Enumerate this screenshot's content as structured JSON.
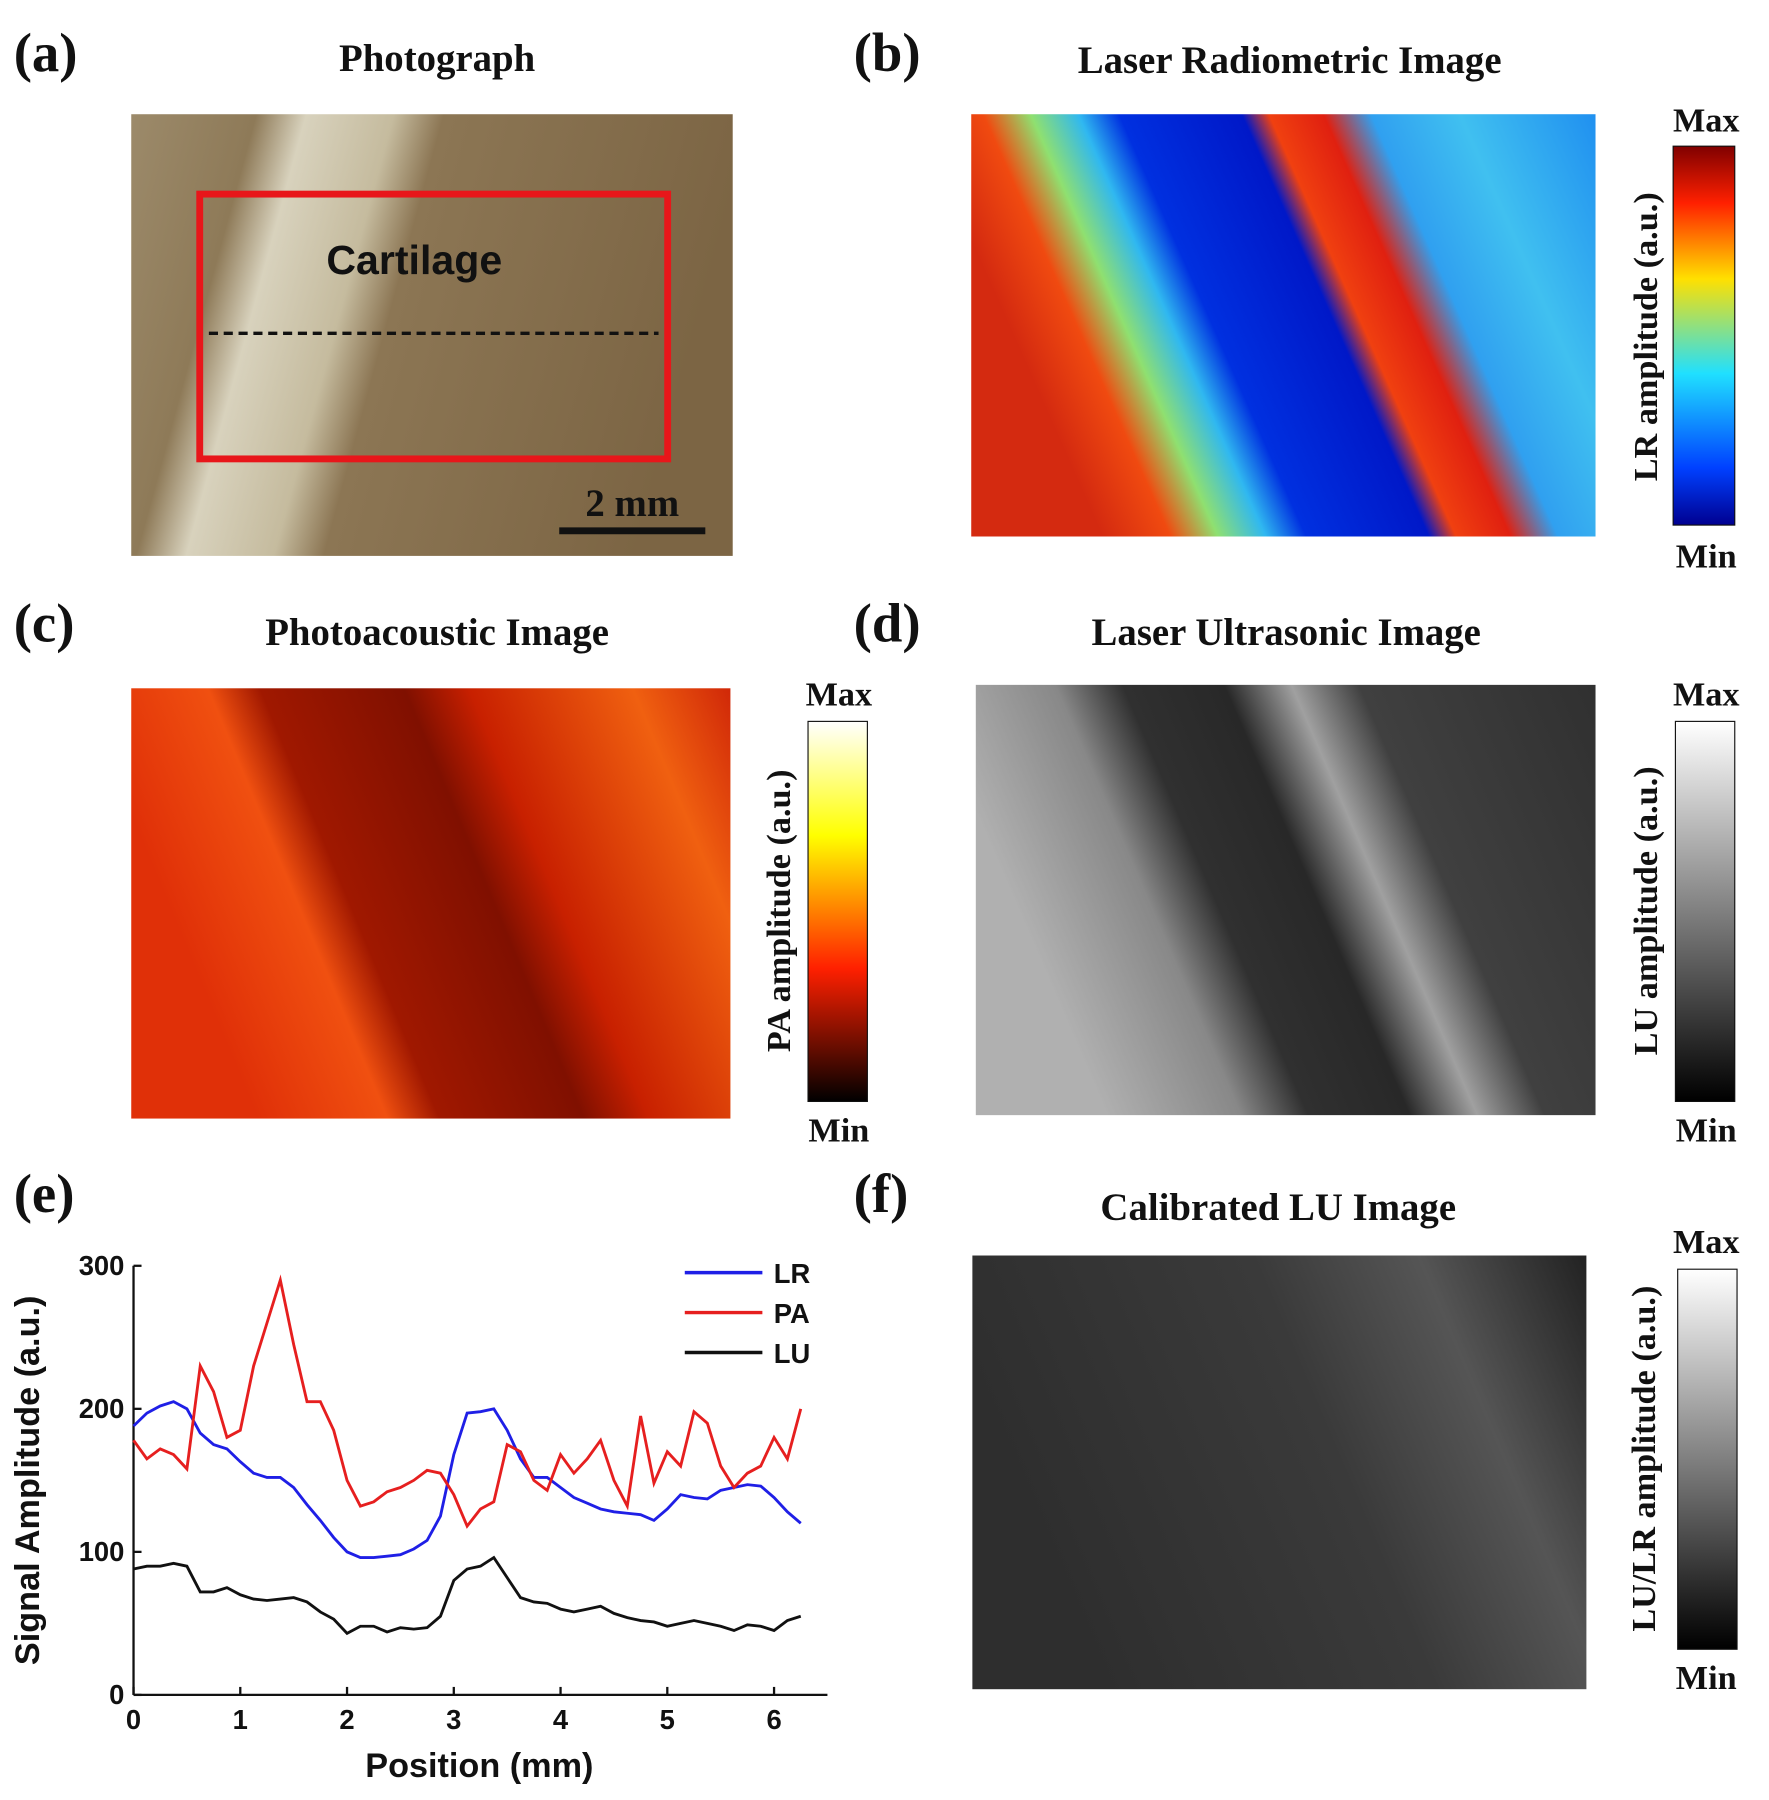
{
  "panels": [
    {
      "label": "(a)",
      "title": "Photograph",
      "annotations": [
        "Cartilage",
        "2 mm"
      ]
    },
    {
      "label": "(b)",
      "title": "Laser Radiometric Image",
      "colorbar": {
        "label": "LR amplitude (a.u.)",
        "max": "Max",
        "min": "Min"
      }
    },
    {
      "label": "(c)",
      "title": "Photoacoustic Image",
      "colorbar": {
        "label": "PA amplitude (a.u.)",
        "max": "Max",
        "min": "Min"
      }
    },
    {
      "label": "(d)",
      "title": "Laser Ultrasonic Image",
      "colorbar": {
        "label": "LU amplitude (a.u.)",
        "max": "Max",
        "min": "Min"
      }
    },
    {
      "label": "(f)",
      "title": "Calibrated LU Image",
      "colorbar": {
        "label": "LU/LR amplitude (a.u.)",
        "max": "Max",
        "min": "Min"
      }
    }
  ],
  "chart_data": {
    "type": "line",
    "label": "(e)",
    "xlabel": "Position (mm)",
    "ylabel": "Signal Amplitude (a.u.)",
    "xlim": [
      0,
      6.5
    ],
    "xticks": [
      0,
      1,
      2,
      3,
      4,
      5,
      6
    ],
    "ylim": [
      0,
      300
    ],
    "yticks": [
      0,
      100,
      200,
      300
    ],
    "x": [
      0,
      0.125,
      0.25,
      0.375,
      0.5,
      0.625,
      0.75,
      0.875,
      1,
      1.125,
      1.25,
      1.375,
      1.5,
      1.625,
      1.75,
      1.875,
      2,
      2.125,
      2.25,
      2.375,
      2.5,
      2.625,
      2.75,
      2.875,
      3,
      3.125,
      3.25,
      3.375,
      3.5,
      3.625,
      3.75,
      3.875,
      4,
      4.125,
      4.25,
      4.375,
      4.5,
      4.625,
      4.75,
      4.875,
      5,
      5.125,
      5.25,
      5.375,
      5.5,
      5.625,
      5.75,
      5.875,
      6,
      6.125,
      6.25
    ],
    "series": [
      {
        "name": "LR",
        "color": "#1f1fe6",
        "values": [
          188,
          197,
          202,
          205,
          200,
          183,
          175,
          172,
          163,
          155,
          152,
          152,
          145,
          133,
          122,
          110,
          100,
          96,
          96,
          97,
          98,
          102,
          108,
          125,
          168,
          197,
          198,
          200,
          185,
          165,
          152,
          152,
          145,
          138,
          134,
          130,
          128,
          127,
          126,
          122,
          130,
          140,
          138,
          137,
          143,
          145,
          147,
          146,
          138,
          128,
          120
        ]
      },
      {
        "name": "PA",
        "color": "#e61f1f",
        "values": [
          178,
          165,
          172,
          168,
          158,
          230,
          212,
          180,
          185,
          230,
          260,
          290,
          245,
          205,
          205,
          185,
          150,
          132,
          135,
          142,
          145,
          150,
          157,
          155,
          140,
          118,
          130,
          135,
          175,
          170,
          150,
          143,
          168,
          155,
          165,
          178,
          150,
          132,
          195,
          148,
          170,
          160,
          198,
          190,
          160,
          145,
          155,
          160,
          180,
          165,
          200
        ]
      },
      {
        "name": "LU",
        "color": "#111111",
        "values": [
          88,
          90,
          90,
          92,
          90,
          72,
          72,
          75,
          70,
          67,
          66,
          67,
          68,
          65,
          58,
          53,
          43,
          48,
          48,
          44,
          47,
          46,
          47,
          55,
          80,
          88,
          90,
          96,
          82,
          68,
          65,
          64,
          60,
          58,
          60,
          62,
          57,
          54,
          52,
          51,
          48,
          50,
          52,
          50,
          48,
          45,
          49,
          48,
          45,
          52,
          55
        ]
      }
    ]
  }
}
